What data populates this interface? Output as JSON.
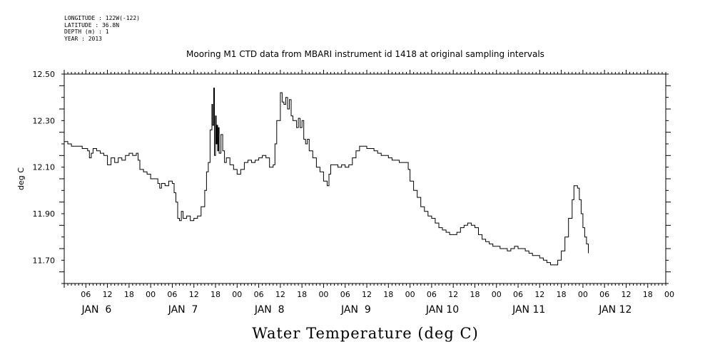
{
  "metadata": [
    "LONGITUDE : 122W(-122)",
    "LATITUDE : 36.8N",
    "DEPTH (m) : 1",
    "YEAR : 2013"
  ],
  "chart_data": {
    "type": "line",
    "title": "Mooring M1 CTD data from MBARI instrument id 1418 at original sampling intervals",
    "xlabel": "Water Temperature (deg C)",
    "ylabel": "deg C",
    "xlim_hours": [
      0,
      167
    ],
    "ylim": [
      11.6,
      12.5
    ],
    "y_ticks": [
      "12.50",
      "12.30",
      "12.10",
      "11.90",
      "11.70"
    ],
    "x_hour_ticks": [
      {
        "h": 6,
        "label": "06"
      },
      {
        "h": 12,
        "label": "12"
      },
      {
        "h": 18,
        "label": "18"
      },
      {
        "h": 24,
        "label": "00"
      },
      {
        "h": 30,
        "label": "06"
      },
      {
        "h": 36,
        "label": "12"
      },
      {
        "h": 42,
        "label": "18"
      },
      {
        "h": 48,
        "label": "00"
      },
      {
        "h": 54,
        "label": "06"
      },
      {
        "h": 60,
        "label": "12"
      },
      {
        "h": 66,
        "label": "18"
      },
      {
        "h": 72,
        "label": "00"
      },
      {
        "h": 78,
        "label": "06"
      },
      {
        "h": 84,
        "label": "12"
      },
      {
        "h": 90,
        "label": "18"
      },
      {
        "h": 96,
        "label": "00"
      },
      {
        "h": 102,
        "label": "06"
      },
      {
        "h": 108,
        "label": "12"
      },
      {
        "h": 114,
        "label": "18"
      },
      {
        "h": 120,
        "label": "00"
      },
      {
        "h": 126,
        "label": "06"
      },
      {
        "h": 132,
        "label": "12"
      },
      {
        "h": 138,
        "label": "18"
      },
      {
        "h": 144,
        "label": "00"
      },
      {
        "h": 150,
        "label": "06"
      },
      {
        "h": 156,
        "label": "12"
      },
      {
        "h": 162,
        "label": "18"
      },
      {
        "h": 168,
        "label": "00"
      }
    ],
    "day_labels": [
      {
        "h": 9,
        "label": "JAN  6"
      },
      {
        "h": 33,
        "label": "JAN  7"
      },
      {
        "h": 57,
        "label": "JAN  8"
      },
      {
        "h": 81,
        "label": "JAN  9"
      },
      {
        "h": 105,
        "label": "JAN 10"
      },
      {
        "h": 129,
        "label": "JAN 11"
      },
      {
        "h": 153,
        "label": "JAN 12"
      }
    ],
    "series": [
      {
        "color": "#000000",
        "points": [
          [
            0,
            12.21
          ],
          [
            1,
            12.2
          ],
          [
            2,
            12.19
          ],
          [
            3,
            12.19
          ],
          [
            4,
            12.19
          ],
          [
            5,
            12.18
          ],
          [
            6,
            12.18
          ],
          [
            6.5,
            12.17
          ],
          [
            7,
            12.14
          ],
          [
            7.5,
            12.16
          ],
          [
            8,
            12.18
          ],
          [
            9,
            12.17
          ],
          [
            10,
            12.16
          ],
          [
            11,
            12.15
          ],
          [
            12,
            12.11
          ],
          [
            13,
            12.14
          ],
          [
            14,
            12.12
          ],
          [
            15,
            12.14
          ],
          [
            16,
            12.13
          ],
          [
            17,
            12.15
          ],
          [
            18,
            12.16
          ],
          [
            19,
            12.15
          ],
          [
            20,
            12.16
          ],
          [
            20.5,
            12.13
          ],
          [
            21,
            12.09
          ],
          [
            22,
            12.08
          ],
          [
            23,
            12.07
          ],
          [
            24,
            12.05
          ],
          [
            25,
            12.05
          ],
          [
            26,
            12.03
          ],
          [
            26.5,
            12.01
          ],
          [
            27,
            12.03
          ],
          [
            28,
            12.02
          ],
          [
            29,
            12.04
          ],
          [
            30,
            12.03
          ],
          [
            30.5,
            11.99
          ],
          [
            31,
            11.95
          ],
          [
            31.5,
            11.88
          ],
          [
            32,
            11.87
          ],
          [
            32.5,
            11.91
          ],
          [
            33,
            11.88
          ],
          [
            34,
            11.89
          ],
          [
            35,
            11.87
          ],
          [
            36,
            11.88
          ],
          [
            37,
            11.89
          ],
          [
            38,
            11.93
          ],
          [
            39,
            12.0
          ],
          [
            39.5,
            12.08
          ],
          [
            40,
            12.12
          ],
          [
            40.5,
            12.26
          ],
          [
            41,
            12.37
          ],
          [
            41.2,
            12.28
          ],
          [
            41.5,
            12.44
          ],
          [
            41.7,
            12.15
          ],
          [
            42,
            12.32
          ],
          [
            42.2,
            12.2
          ],
          [
            42.4,
            12.28
          ],
          [
            42.6,
            12.17
          ],
          [
            42.8,
            12.27
          ],
          [
            43,
            12.16
          ],
          [
            43.5,
            12.24
          ],
          [
            44,
            12.17
          ],
          [
            44.5,
            12.12
          ],
          [
            45,
            12.14
          ],
          [
            46,
            12.11
          ],
          [
            47,
            12.09
          ],
          [
            48,
            12.07
          ],
          [
            49,
            12.09
          ],
          [
            50,
            12.12
          ],
          [
            51,
            12.13
          ],
          [
            52,
            12.12
          ],
          [
            53,
            12.13
          ],
          [
            54,
            12.14
          ],
          [
            55,
            12.15
          ],
          [
            56,
            12.14
          ],
          [
            57,
            12.1
          ],
          [
            58,
            12.11
          ],
          [
            58.5,
            12.2
          ],
          [
            59,
            12.3
          ],
          [
            60,
            12.42
          ],
          [
            60.5,
            12.38
          ],
          [
            61,
            12.37
          ],
          [
            61.5,
            12.4
          ],
          [
            62,
            12.35
          ],
          [
            62.5,
            12.39
          ],
          [
            63,
            12.32
          ],
          [
            63.5,
            12.3
          ],
          [
            64,
            12.3
          ],
          [
            64.5,
            12.27
          ],
          [
            65,
            12.31
          ],
          [
            65.5,
            12.27
          ],
          [
            66,
            12.3
          ],
          [
            66.5,
            12.22
          ],
          [
            67,
            12.2
          ],
          [
            67.5,
            12.22
          ],
          [
            68,
            12.17
          ],
          [
            69,
            12.14
          ],
          [
            70,
            12.1
          ],
          [
            71,
            12.08
          ],
          [
            72,
            12.04
          ],
          [
            73,
            12.02
          ],
          [
            73.5,
            12.07
          ],
          [
            74,
            12.11
          ],
          [
            75,
            12.11
          ],
          [
            76,
            12.1
          ],
          [
            77,
            12.11
          ],
          [
            78,
            12.1
          ],
          [
            79,
            12.11
          ],
          [
            80,
            12.14
          ],
          [
            81,
            12.17
          ],
          [
            82,
            12.19
          ],
          [
            83,
            12.19
          ],
          [
            84,
            12.18
          ],
          [
            85,
            12.18
          ],
          [
            86,
            12.17
          ],
          [
            87,
            12.16
          ],
          [
            88,
            12.15
          ],
          [
            89,
            12.15
          ],
          [
            90,
            12.14
          ],
          [
            91,
            12.13
          ],
          [
            92,
            12.13
          ],
          [
            93,
            12.12
          ],
          [
            94,
            12.12
          ],
          [
            95,
            12.12
          ],
          [
            95.5,
            12.09
          ],
          [
            96,
            12.04
          ],
          [
            97,
            12.0
          ],
          [
            98,
            11.97
          ],
          [
            99,
            11.93
          ],
          [
            100,
            11.91
          ],
          [
            101,
            11.89
          ],
          [
            102,
            11.88
          ],
          [
            103,
            11.86
          ],
          [
            104,
            11.84
          ],
          [
            105,
            11.83
          ],
          [
            106,
            11.82
          ],
          [
            107,
            11.81
          ],
          [
            108,
            11.81
          ],
          [
            109,
            11.82
          ],
          [
            110,
            11.84
          ],
          [
            111,
            11.85
          ],
          [
            112,
            11.86
          ],
          [
            113,
            11.85
          ],
          [
            114,
            11.84
          ],
          [
            115,
            11.81
          ],
          [
            116,
            11.79
          ],
          [
            117,
            11.78
          ],
          [
            118,
            11.77
          ],
          [
            119,
            11.76
          ],
          [
            120,
            11.76
          ],
          [
            121,
            11.75
          ],
          [
            122,
            11.75
          ],
          [
            123,
            11.74
          ],
          [
            124,
            11.75
          ],
          [
            125,
            11.76
          ],
          [
            126,
            11.75
          ],
          [
            127,
            11.75
          ],
          [
            128,
            11.74
          ],
          [
            129,
            11.73
          ],
          [
            130,
            11.72
          ],
          [
            131,
            11.72
          ],
          [
            132,
            11.71
          ],
          [
            133,
            11.7
          ],
          [
            134,
            11.69
          ],
          [
            135,
            11.68
          ],
          [
            136,
            11.68
          ],
          [
            137,
            11.7
          ],
          [
            138,
            11.74
          ],
          [
            139,
            11.8
          ],
          [
            140,
            11.88
          ],
          [
            141,
            11.96
          ],
          [
            141.5,
            12.02
          ],
          [
            142,
            12.02
          ],
          [
            142.5,
            12.01
          ],
          [
            143,
            11.96
          ],
          [
            143.5,
            11.9
          ],
          [
            144,
            11.84
          ],
          [
            144.5,
            11.8
          ],
          [
            145,
            11.77
          ],
          [
            145.5,
            11.73
          ]
        ]
      }
    ]
  }
}
